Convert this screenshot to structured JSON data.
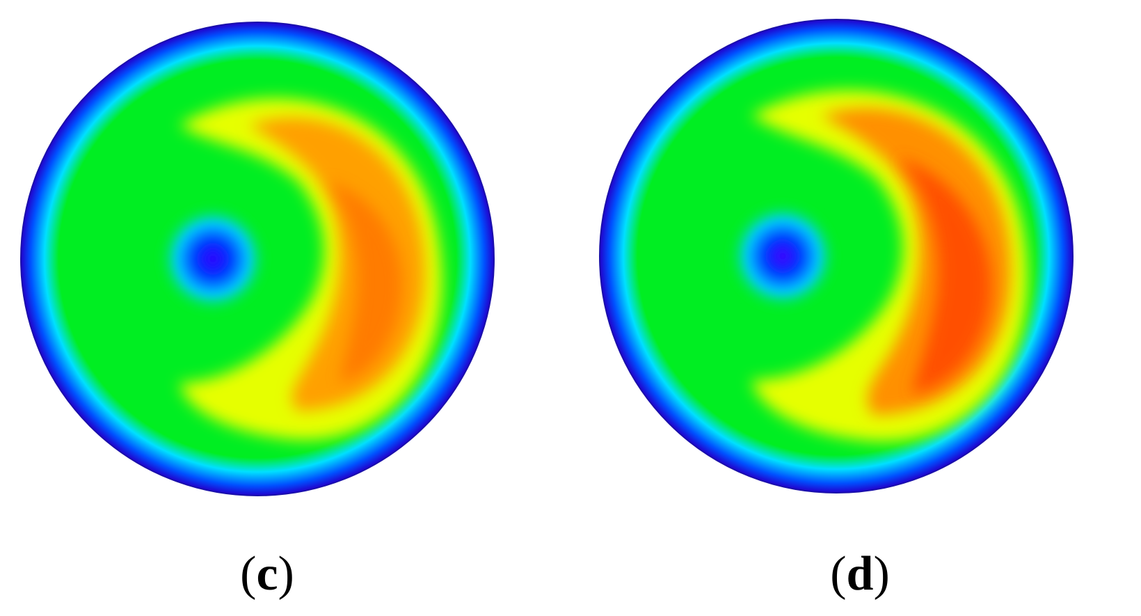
{
  "panels": [
    {
      "id": "c",
      "label": {
        "open": "(",
        "letter": "c",
        "close": ")"
      },
      "intensity_scale": 0.9
    },
    {
      "id": "d",
      "label": {
        "open": "(",
        "letter": "d",
        "close": ")"
      },
      "intensity_scale": 1.0
    }
  ],
  "colormap": [
    "#2200dd",
    "#0040ff",
    "#00e0ff",
    "#00ee22",
    "#e6ff00",
    "#ffa000",
    "#ff4a00"
  ]
}
